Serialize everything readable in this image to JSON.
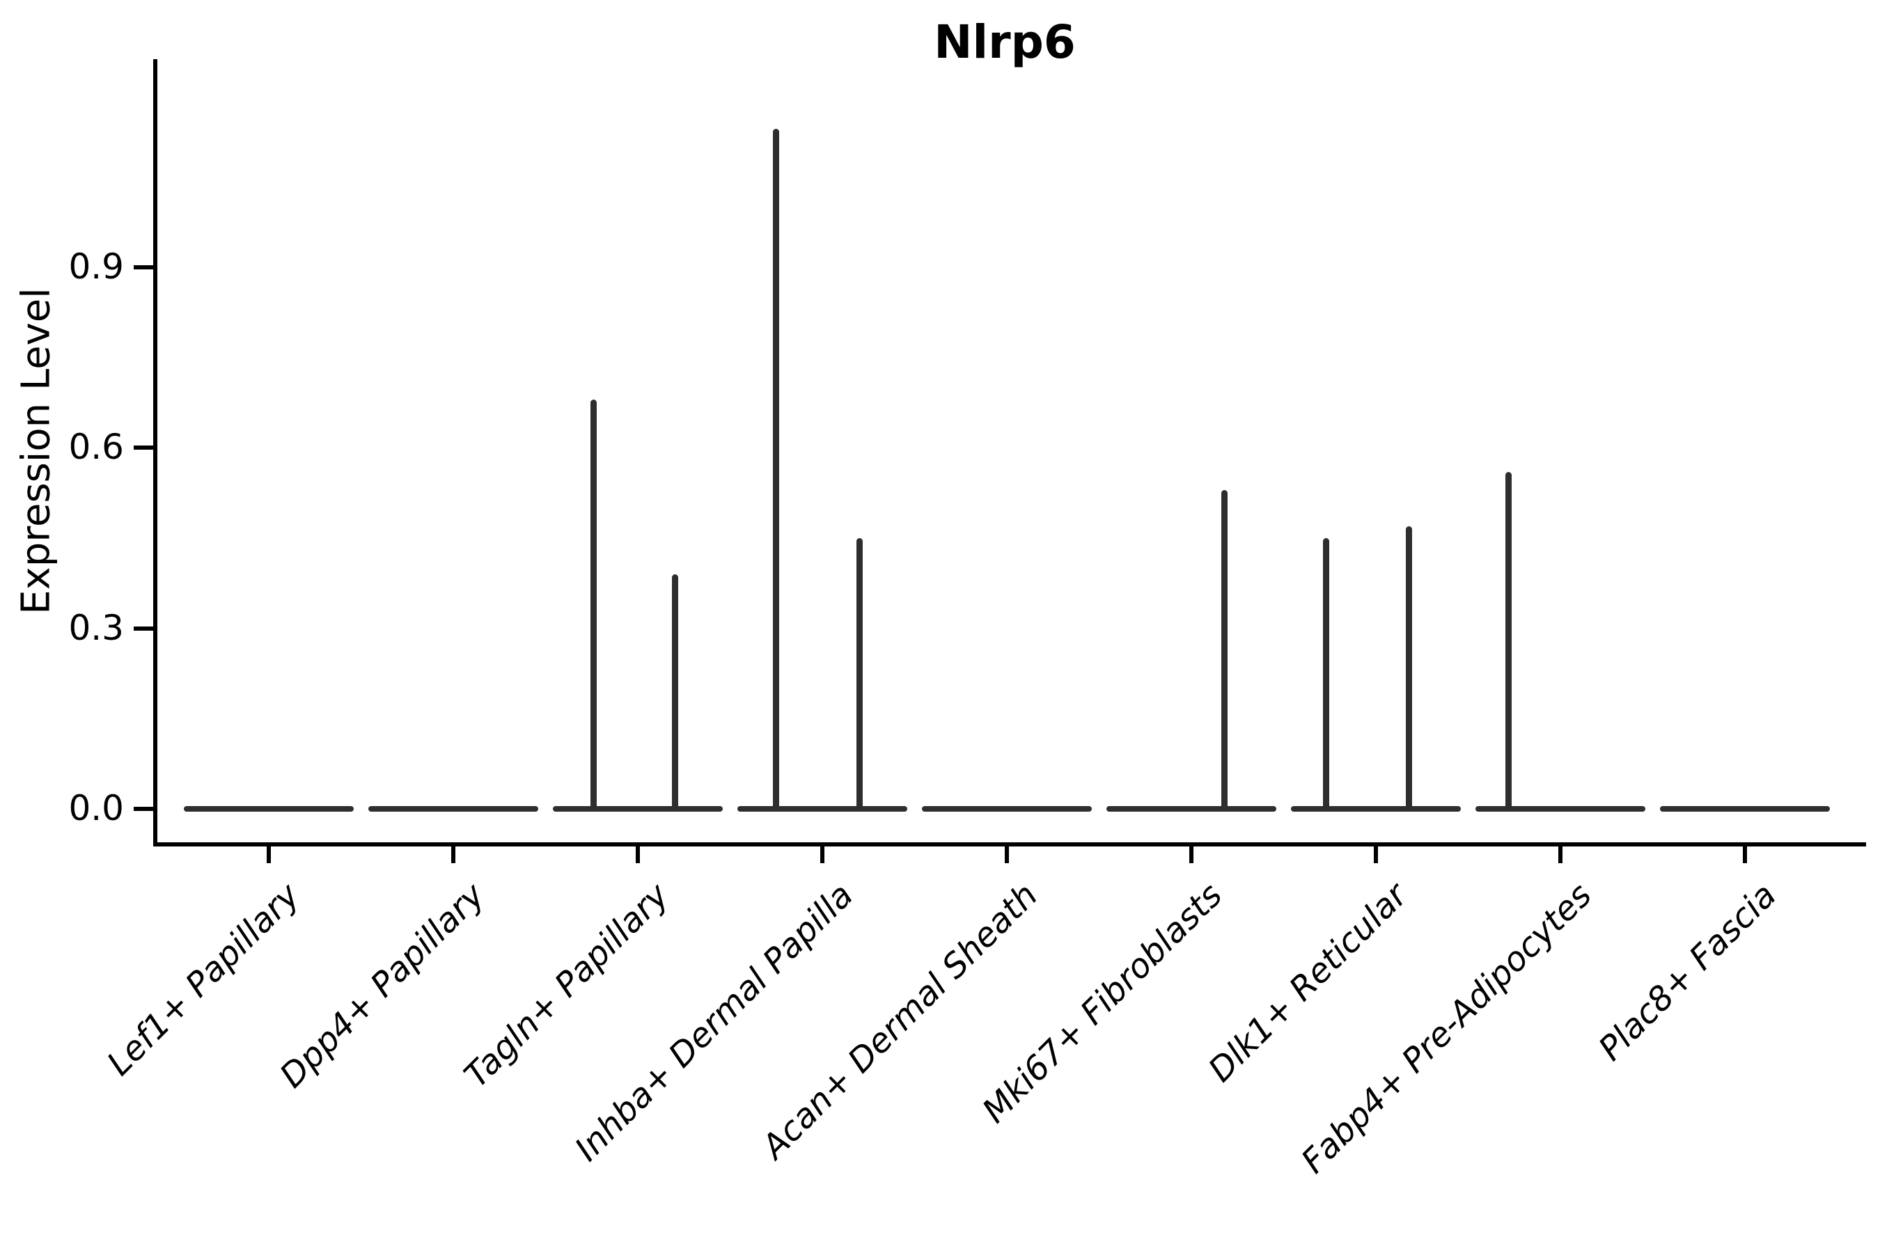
{
  "figure": {
    "background": "#ffffff"
  },
  "chart_data": {
    "type": "violin",
    "title": "Nlrp6",
    "ylabel": "Expression Level",
    "xlabel": "",
    "legend": "none",
    "grid": false,
    "ylim": [
      -0.06,
      1.25
    ],
    "ytick_values": [
      0.0,
      0.3,
      0.6,
      0.9
    ],
    "ytick_labels": [
      "0.0",
      "0.3",
      "0.6",
      "0.9"
    ],
    "categories": [
      "Lef1+ Papillary",
      "Dpp4+ Papillary",
      "Tagln+ Papillary",
      "Inhba+ Dermal Papilla",
      "Acan+ Dermal Sheath",
      "Mki67+ Fibroblasts",
      "Dlk1+ Reticular",
      "Fabp4+ Pre-Adipocytes",
      "Plac8+ Fascia"
    ],
    "violins": [
      {
        "category": "Lef1+ Papillary",
        "baseline_value": 0.0,
        "spikes": []
      },
      {
        "category": "Dpp4+ Papillary",
        "baseline_value": 0.0,
        "spikes": []
      },
      {
        "category": "Tagln+ Papillary",
        "baseline_value": 0.0,
        "spikes": [
          {
            "offset_frac": -0.24,
            "value": 0.68
          },
          {
            "offset_frac": 0.2,
            "value": 0.39
          }
        ]
      },
      {
        "category": "Inhba+ Dermal Papilla",
        "baseline_value": 0.0,
        "spikes": [
          {
            "offset_frac": -0.25,
            "value": 1.13
          },
          {
            "offset_frac": 0.2,
            "value": 0.45
          }
        ]
      },
      {
        "category": "Acan+ Dermal Sheath",
        "baseline_value": 0.0,
        "spikes": []
      },
      {
        "category": "Mki67+ Fibroblasts",
        "baseline_value": 0.0,
        "spikes": [
          {
            "offset_frac": 0.18,
            "value": 0.53
          }
        ]
      },
      {
        "category": "Dlk1+ Reticular",
        "baseline_value": 0.0,
        "spikes": [
          {
            "offset_frac": -0.27,
            "value": 0.45
          },
          {
            "offset_frac": 0.18,
            "value": 0.47
          }
        ]
      },
      {
        "category": "Fabp4+ Pre-Adipocytes",
        "baseline_value": 0.0,
        "spikes": [
          {
            "offset_frac": -0.28,
            "value": 0.56
          }
        ]
      },
      {
        "category": "Plac8+ Fascia",
        "baseline_value": 0.0,
        "spikes": []
      }
    ],
    "colors": {
      "violin": "#2e2e2e",
      "axis": "#000000",
      "text": "#000000"
    }
  }
}
